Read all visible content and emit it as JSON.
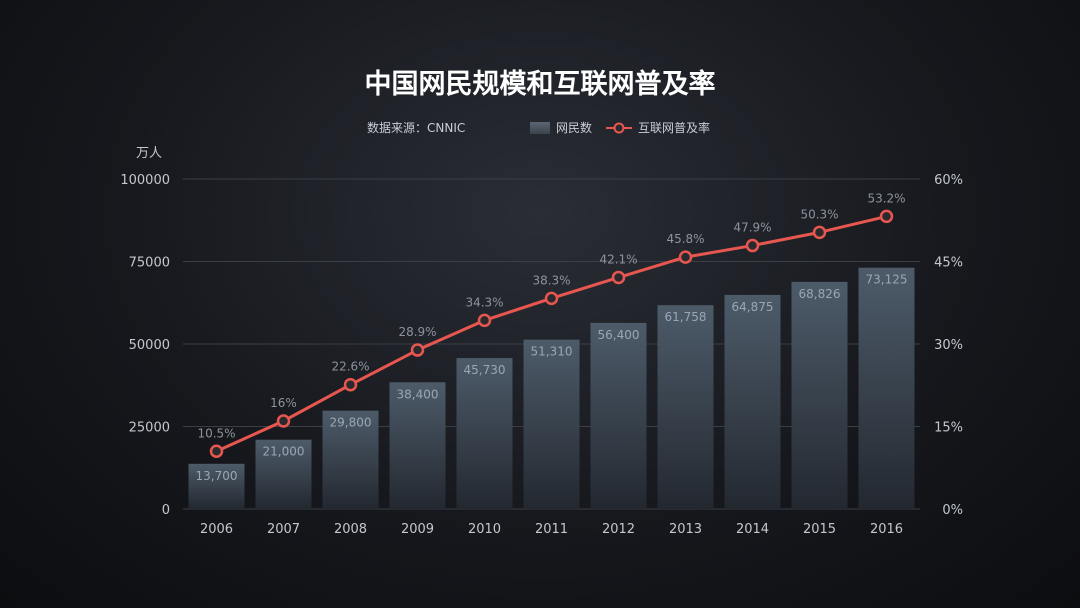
{
  "chart_data": {
    "type": "bar",
    "title": "中国网民规模和互联网普及率",
    "source": "数据来源：CNNIC",
    "y_unit": "万人",
    "categories": [
      "2006",
      "2007",
      "2008",
      "2009",
      "2010",
      "2011",
      "2012",
      "2013",
      "2014",
      "2015",
      "2016"
    ],
    "series": [
      {
        "name": "网民数",
        "type": "bar",
        "axis": "left",
        "values": [
          13700,
          21000,
          29800,
          38400,
          45730,
          51310,
          56400,
          61758,
          64875,
          68826,
          73125
        ],
        "labels": [
          "13,700",
          "21,000",
          "29,800",
          "38,400",
          "45,730",
          "51,310",
          "56,400",
          "61,758",
          "64,875",
          "68,826",
          "73,125"
        ]
      },
      {
        "name": "互联网普及率",
        "type": "line",
        "axis": "right",
        "values": [
          10.5,
          16,
          22.6,
          28.9,
          34.3,
          38.3,
          42.1,
          45.8,
          47.9,
          50.3,
          53.2
        ],
        "labels": [
          "10.5%",
          "16%",
          "22.6%",
          "28.9%",
          "34.3%",
          "38.3%",
          "42.1%",
          "45.8%",
          "47.9%",
          "50.3%",
          "53.2%"
        ]
      }
    ],
    "ylim": [
      0,
      100000
    ],
    "y_ticks": [
      "0",
      "25000",
      "50000",
      "75000",
      "100000"
    ],
    "y2lim": [
      0,
      60
    ],
    "y2_ticks": [
      "0%",
      "15%",
      "30%",
      "45%",
      "60%"
    ],
    "grid": true,
    "legend_position": "top",
    "colors": {
      "bar_top": "#4d5b69",
      "bar_bottom": "#232830",
      "line": "#e8574f",
      "marker_fill": "#2a2a2e",
      "grid": "#3a3e45"
    }
  }
}
